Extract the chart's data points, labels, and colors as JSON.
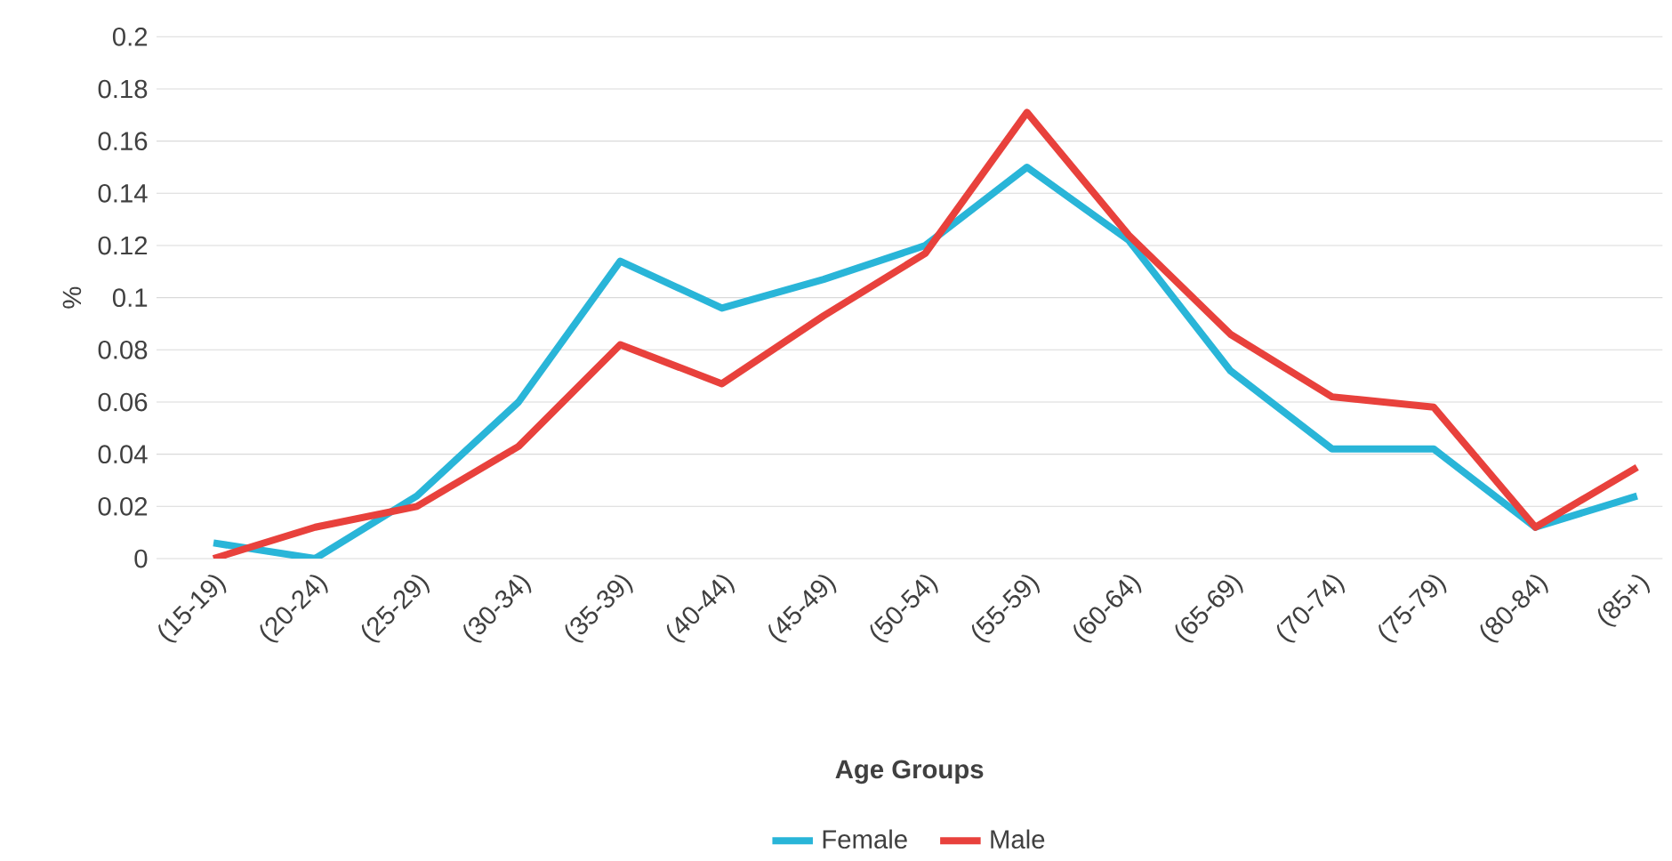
{
  "chart_data": {
    "type": "line",
    "xlabel": "Age Groups",
    "ylabel": "%",
    "categories": [
      "(15-19)",
      "(20-24)",
      "(25-29)",
      "(30-34)",
      "(35-39)",
      "(40-44)",
      "(45-49)",
      "(50-54)",
      "(55-59)",
      "(60-64)",
      "(65-69)",
      "(70-74)",
      "(75-79)",
      "(80-84)",
      "(85+)"
    ],
    "series": [
      {
        "name": "Female",
        "color": "#29b5d8",
        "values": [
          0.006,
          0,
          0.024,
          0.06,
          0.114,
          0.096,
          0.107,
          0.12,
          0.15,
          0.122,
          0.072,
          0.042,
          0.042,
          0.012,
          0.024
        ]
      },
      {
        "name": "Male",
        "color": "#e8413c",
        "values": [
          0,
          0.012,
          0.02,
          0.043,
          0.082,
          0.067,
          0.093,
          0.117,
          0.171,
          0.124,
          0.086,
          0.062,
          0.058,
          0.012,
          0.035
        ]
      }
    ],
    "ylim": [
      0,
      0.2
    ],
    "yticks": [
      0,
      0.02,
      0.04,
      0.06,
      0.08,
      0.1,
      0.12,
      0.14,
      0.16,
      0.18,
      0.2
    ],
    "grid": "y",
    "legend": "bottom",
    "marker": "none",
    "line_style": "solid"
  }
}
